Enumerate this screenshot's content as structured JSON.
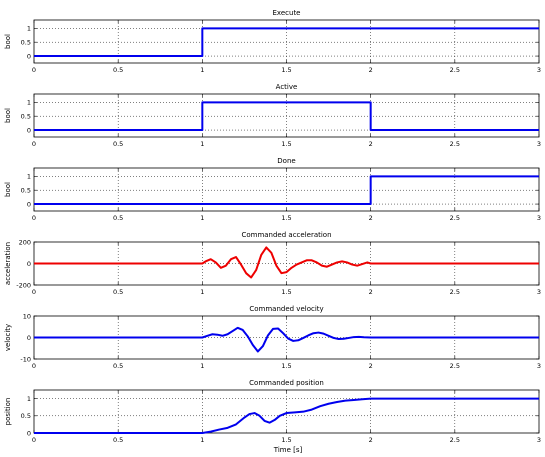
{
  "figure": {
    "xlabel": "Time [s]"
  },
  "chart_data": [
    {
      "type": "line",
      "title": "Execute",
      "ylabel": "bool",
      "xlim": [
        0,
        3
      ],
      "ylim": [
        -0.25,
        1.3
      ],
      "xticks": [
        "0",
        "0.5",
        "1",
        "1.5",
        "2",
        "2.5",
        "3"
      ],
      "yticks": [
        "0",
        "0.5",
        "1"
      ],
      "grid": true,
      "series": [
        {
          "color": "#0000ee",
          "x": [
            0,
            1,
            1,
            3
          ],
          "y": [
            0,
            0,
            1,
            1
          ]
        }
      ]
    },
    {
      "type": "line",
      "title": "Active",
      "ylabel": "bool",
      "xlim": [
        0,
        3
      ],
      "ylim": [
        -0.25,
        1.3
      ],
      "xticks": [
        "0",
        "0.5",
        "1",
        "1.5",
        "2",
        "2.5",
        "3"
      ],
      "yticks": [
        "0",
        "0.5",
        "1"
      ],
      "grid": true,
      "series": [
        {
          "color": "#0000ee",
          "x": [
            0,
            1,
            1,
            2,
            2,
            3
          ],
          "y": [
            0,
            0,
            1,
            1,
            0,
            0
          ]
        }
      ]
    },
    {
      "type": "line",
      "title": "Done",
      "ylabel": "bool",
      "xlim": [
        0,
        3
      ],
      "ylim": [
        -0.25,
        1.3
      ],
      "xticks": [
        "0",
        "0.5",
        "1",
        "1.5",
        "2",
        "2.5",
        "3"
      ],
      "yticks": [
        "0",
        "0.5",
        "1"
      ],
      "grid": true,
      "series": [
        {
          "color": "#0000ee",
          "x": [
            0,
            2,
            2,
            3
          ],
          "y": [
            0,
            0,
            1,
            1
          ]
        }
      ]
    },
    {
      "type": "line",
      "title": "Commanded acceleration",
      "ylabel": "acceleration",
      "xlim": [
        0,
        3
      ],
      "ylim": [
        -200,
        200
      ],
      "xticks": [
        "0",
        "0.5",
        "1",
        "1.5",
        "2",
        "2.5",
        "3"
      ],
      "yticks": [
        "-200",
        "0",
        "200"
      ],
      "grid": true,
      "series": [
        {
          "color": "#ee0000",
          "x": [
            0,
            1.0,
            1.02,
            1.05,
            1.08,
            1.11,
            1.14,
            1.17,
            1.2,
            1.23,
            1.26,
            1.29,
            1.32,
            1.35,
            1.38,
            1.41,
            1.44,
            1.47,
            1.5,
            1.53,
            1.56,
            1.59,
            1.62,
            1.65,
            1.68,
            1.71,
            1.74,
            1.77,
            1.8,
            1.83,
            1.86,
            1.89,
            1.92,
            1.95,
            1.98,
            2.0,
            3
          ],
          "y": [
            0,
            0,
            20,
            40,
            10,
            -40,
            -20,
            40,
            60,
            -10,
            -90,
            -130,
            -60,
            80,
            150,
            100,
            -20,
            -90,
            -80,
            -40,
            -10,
            10,
            30,
            30,
            10,
            -20,
            -30,
            -10,
            10,
            20,
            10,
            -10,
            -20,
            -5,
            10,
            0,
            0
          ]
        }
      ]
    },
    {
      "type": "line",
      "title": "Commanded velocity",
      "ylabel": "velocity",
      "xlim": [
        0,
        3
      ],
      "ylim": [
        -10,
        10
      ],
      "xticks": [
        "0",
        "0.5",
        "1",
        "1.5",
        "2",
        "2.5",
        "3"
      ],
      "yticks": [
        "-10",
        "0",
        "10"
      ],
      "grid": true,
      "series": [
        {
          "color": "#0000ee",
          "x": [
            0,
            1.0,
            1.03,
            1.06,
            1.09,
            1.12,
            1.15,
            1.18,
            1.21,
            1.24,
            1.27,
            1.3,
            1.33,
            1.36,
            1.39,
            1.42,
            1.45,
            1.48,
            1.51,
            1.54,
            1.57,
            1.6,
            1.63,
            1.66,
            1.69,
            1.72,
            1.75,
            1.78,
            1.81,
            1.84,
            1.87,
            1.9,
            1.93,
            1.96,
            2.0,
            3
          ],
          "y": [
            0,
            0,
            0.8,
            1.5,
            1.3,
            0.8,
            1.5,
            3.0,
            4.5,
            3.5,
            0.5,
            -3.5,
            -6.5,
            -4.0,
            1.0,
            4.0,
            4.2,
            2.0,
            -0.5,
            -1.6,
            -1.3,
            -0.2,
            1.0,
            2.0,
            2.3,
            1.8,
            0.8,
            -0.2,
            -0.7,
            -0.6,
            -0.2,
            0.2,
            0.3,
            0.1,
            0,
            0
          ]
        }
      ]
    },
    {
      "type": "line",
      "title": "Commanded position",
      "ylabel": "position",
      "xlabel": "Time [s]",
      "xlim": [
        0,
        3
      ],
      "ylim": [
        0,
        1.25
      ],
      "xticks": [
        "0",
        "0.5",
        "1",
        "1.5",
        "2",
        "2.5",
        "3"
      ],
      "yticks": [
        "0",
        "0.5",
        "1"
      ],
      "grid": true,
      "series": [
        {
          "color": "#0000ee",
          "x": [
            0,
            1.0,
            1.05,
            1.1,
            1.15,
            1.2,
            1.25,
            1.28,
            1.31,
            1.34,
            1.37,
            1.4,
            1.43,
            1.46,
            1.5,
            1.55,
            1.6,
            1.65,
            1.7,
            1.75,
            1.8,
            1.85,
            1.9,
            1.95,
            2.0,
            3
          ],
          "y": [
            0,
            0,
            0.04,
            0.1,
            0.15,
            0.25,
            0.45,
            0.55,
            0.58,
            0.5,
            0.35,
            0.3,
            0.38,
            0.5,
            0.58,
            0.6,
            0.62,
            0.68,
            0.78,
            0.85,
            0.9,
            0.94,
            0.96,
            0.98,
            1.0,
            1.0
          ]
        }
      ]
    }
  ]
}
